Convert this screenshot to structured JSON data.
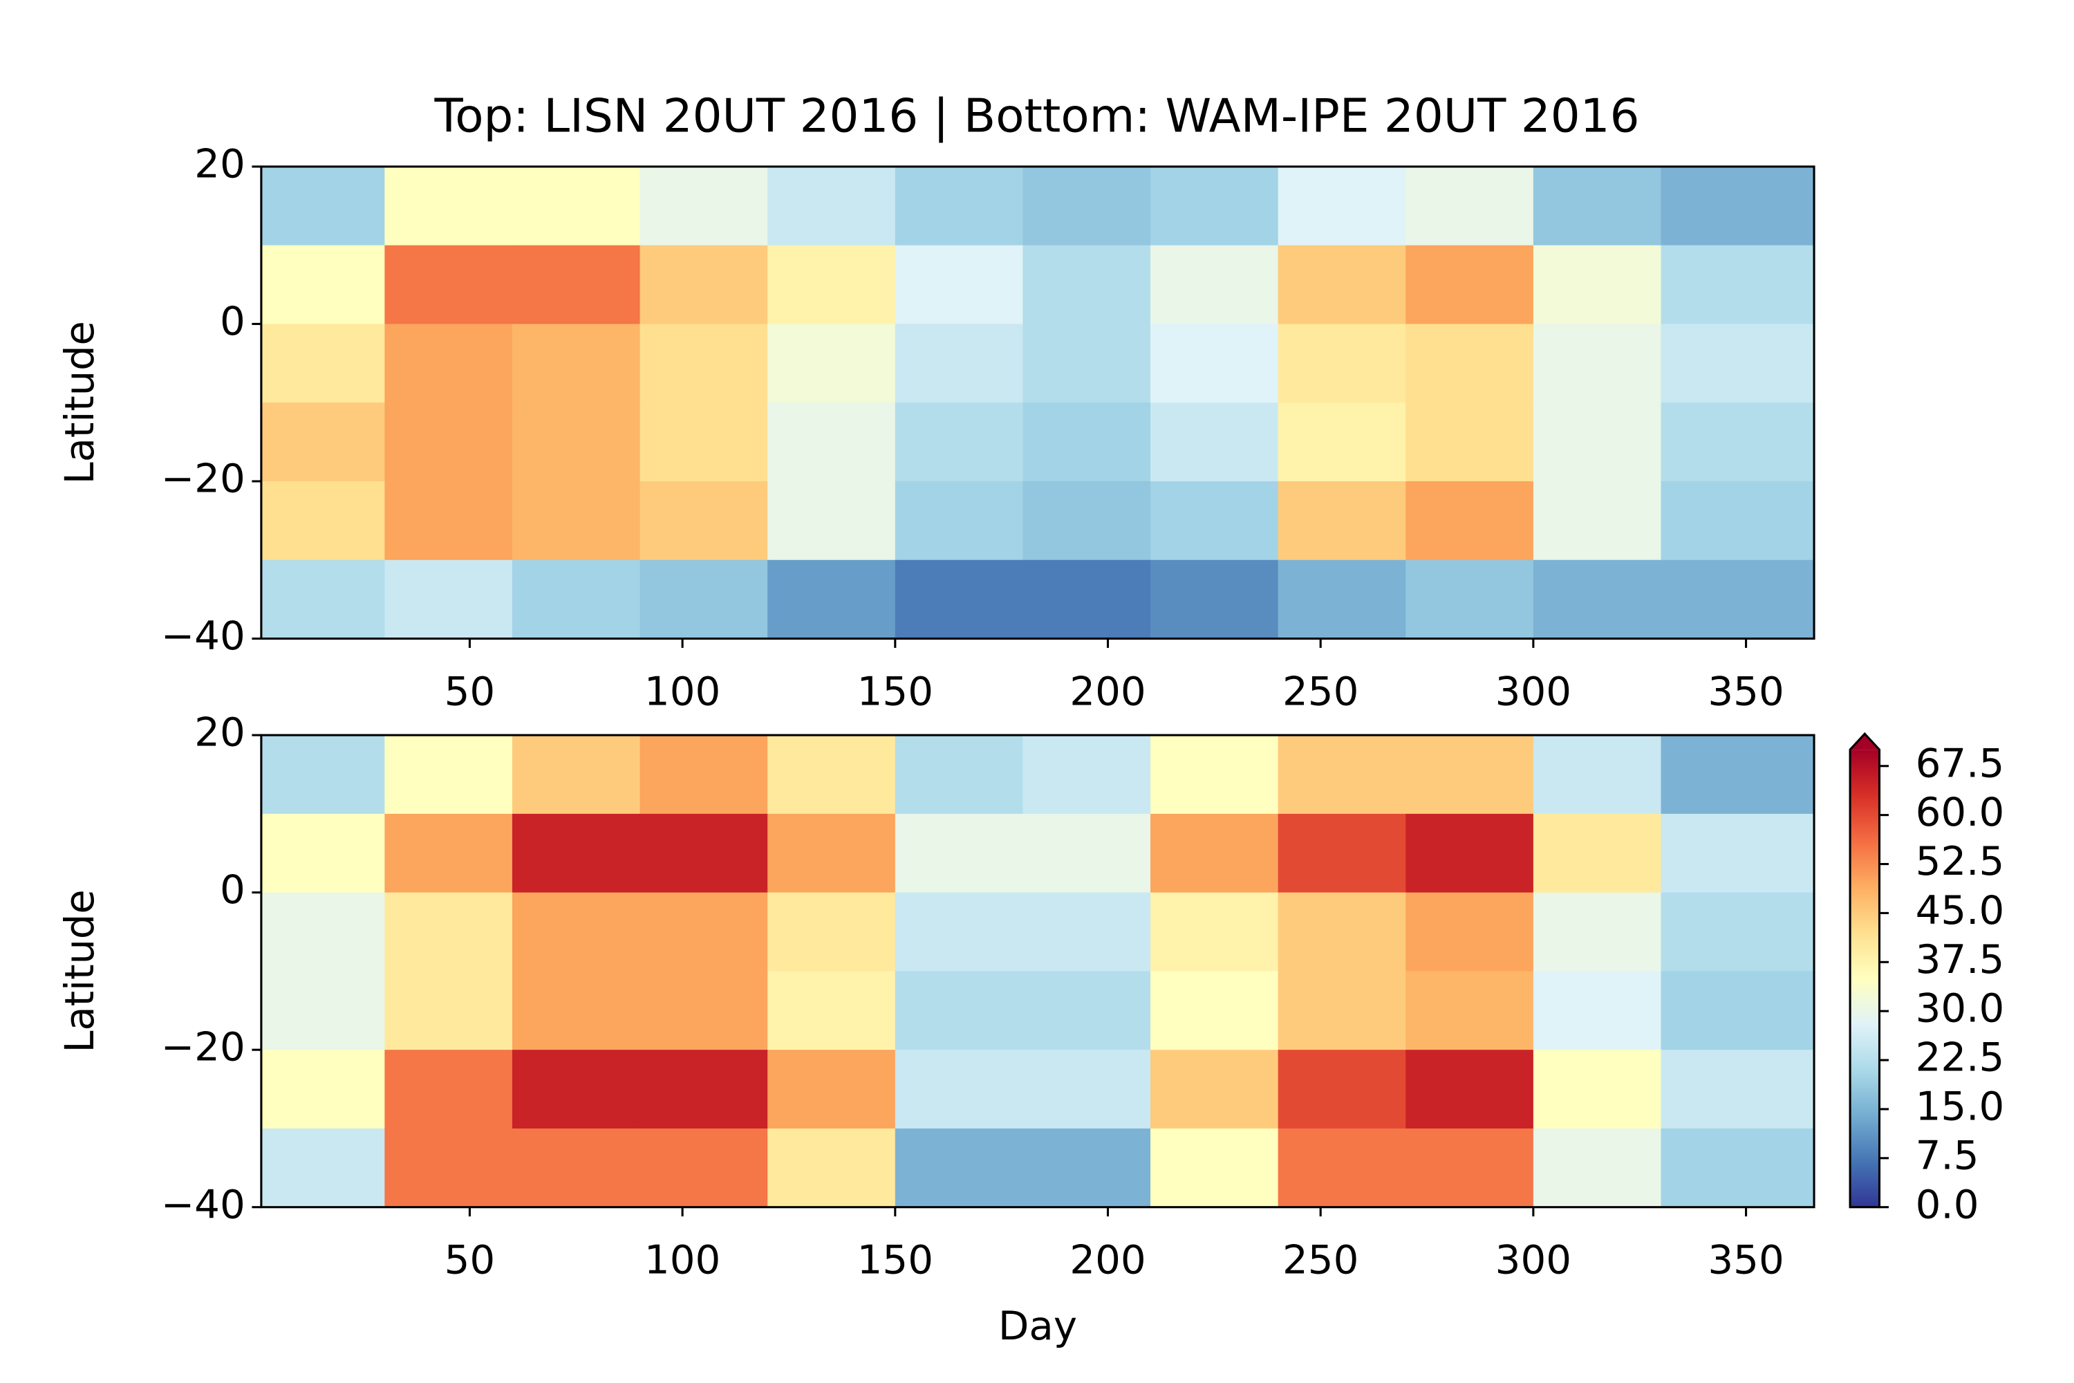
{
  "chart_data": [
    {
      "type": "heatmap",
      "title": "Top: LISN 20UT 2016 | Bottom: WAM-IPE 20UT 2016",
      "ylabel": "Latitude",
      "x": [
        15,
        45,
        75,
        105,
        135,
        165,
        195,
        225,
        255,
        285,
        315,
        345
      ],
      "y": [
        15,
        5,
        -5,
        -15,
        -25,
        -35
      ],
      "values": [
        [
          20,
          35,
          35,
          30,
          25,
          20,
          18,
          20,
          28,
          30,
          18,
          15
        ],
        [
          35,
          55,
          55,
          45,
          38,
          28,
          22,
          30,
          45,
          50,
          32,
          22
        ],
        [
          40,
          50,
          48,
          42,
          32,
          25,
          22,
          28,
          40,
          42,
          30,
          25
        ],
        [
          45,
          50,
          48,
          42,
          30,
          22,
          20,
          25,
          38,
          42,
          30,
          22
        ],
        [
          42,
          50,
          48,
          45,
          30,
          20,
          18,
          20,
          45,
          50,
          30,
          20
        ],
        [
          22,
          25,
          20,
          18,
          12,
          8,
          8,
          10,
          15,
          18,
          15,
          15
        ]
      ],
      "xlim": [
        1,
        366
      ],
      "xticks": [
        50,
        100,
        150,
        200,
        250,
        300,
        350
      ],
      "ylim": [
        -40,
        20
      ],
      "yticks": [
        {
          "value": -40,
          "label": "−40"
        },
        {
          "value": -20,
          "label": "−20"
        },
        0,
        20
      ],
      "clim": [
        0,
        70
      ],
      "colormap": [
        "#313695",
        "#4575b4",
        "#74add1",
        "#abd9e9",
        "#e0f3f8",
        "#ffffbf",
        "#fee090",
        "#fdae61",
        "#f46d43",
        "#d73027",
        "#a50026"
      ]
    },
    {
      "type": "heatmap",
      "xlabel": "Day",
      "ylabel": "Latitude",
      "x": [
        15,
        45,
        75,
        105,
        135,
        165,
        195,
        225,
        255,
        285,
        315,
        345
      ],
      "y": [
        15,
        5,
        -5,
        -15,
        -25,
        -35
      ],
      "values": [
        [
          22,
          35,
          45,
          50,
          40,
          22,
          25,
          35,
          45,
          45,
          25,
          15
        ],
        [
          35,
          50,
          65,
          65,
          50,
          30,
          30,
          50,
          60,
          65,
          40,
          25
        ],
        [
          30,
          40,
          50,
          50,
          40,
          25,
          25,
          38,
          45,
          50,
          30,
          22
        ],
        [
          30,
          40,
          50,
          50,
          38,
          22,
          22,
          35,
          45,
          48,
          28,
          20
        ],
        [
          35,
          55,
          65,
          65,
          50,
          25,
          25,
          45,
          60,
          65,
          35,
          25
        ],
        [
          25,
          55,
          55,
          55,
          40,
          15,
          15,
          35,
          55,
          55,
          30,
          20
        ]
      ],
      "xlim": [
        1,
        366
      ],
      "xticks": [
        50,
        100,
        150,
        200,
        250,
        300,
        350
      ],
      "ylim": [
        -40,
        20
      ],
      "yticks": [
        {
          "value": -40,
          "label": "−40"
        },
        {
          "value": -20,
          "label": "−20"
        },
        0,
        20
      ],
      "clim": [
        0,
        70
      ],
      "colormap": [
        "#313695",
        "#4575b4",
        "#74add1",
        "#abd9e9",
        "#e0f3f8",
        "#ffffbf",
        "#fee090",
        "#fdae61",
        "#f46d43",
        "#d73027",
        "#a50026"
      ],
      "colorbar_ticks": [
        {
          "value": 0,
          "label": "0.0"
        },
        {
          "value": 7.5,
          "label": "7.5"
        },
        {
          "value": 15,
          "label": "15.0"
        },
        {
          "value": 22.5,
          "label": "22.5"
        },
        {
          "value": 30,
          "label": "30.0"
        },
        {
          "value": 37.5,
          "label": "37.5"
        },
        {
          "value": 45,
          "label": "45.0"
        },
        {
          "value": 52.5,
          "label": "52.5"
        },
        {
          "value": 60,
          "label": "60.0"
        },
        {
          "value": 67.5,
          "label": "67.5"
        }
      ]
    }
  ]
}
